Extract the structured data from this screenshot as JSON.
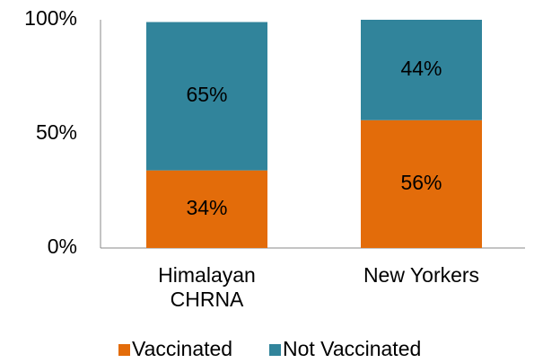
{
  "chart_data": {
    "type": "stacked_bar",
    "categories": [
      "Himalayan CHRNA",
      "New Yorkers"
    ],
    "series": [
      {
        "name": "Vaccinated",
        "color": "#e36c0a",
        "values": [
          34,
          56
        ],
        "value_labels": [
          "34%",
          "56%"
        ]
      },
      {
        "name": "Not Vaccinated",
        "color": "#31849b",
        "values": [
          65,
          44
        ],
        "value_labels": [
          "65%",
          "44%"
        ]
      }
    ],
    "ylim": [
      0,
      100
    ],
    "yticks": [
      {
        "value": 0,
        "label": "0%"
      },
      {
        "value": 50,
        "label": "50%"
      },
      {
        "value": 100,
        "label": "100%"
      }
    ],
    "legend": "bottom"
  }
}
